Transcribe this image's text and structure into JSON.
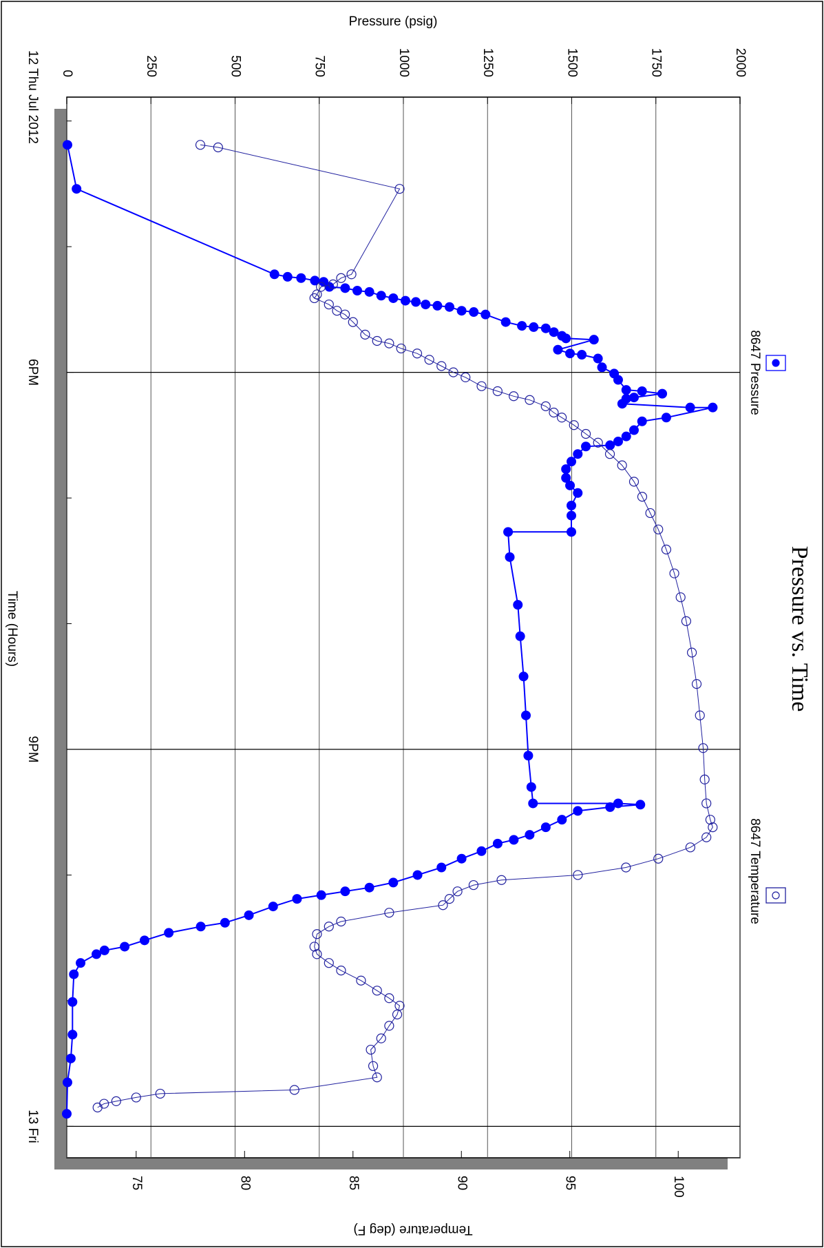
{
  "chart_data": {
    "type": "line",
    "title": "Pressure vs. Time",
    "x_label": "Time (Hours)",
    "y_label": "Pressure (psig)",
    "y2_label": "Temperature (deg F)",
    "xlim": [
      15.81,
      24.25
    ],
    "xticks": [
      {
        "value": 15.81,
        "label": "12 Thu Jul 2012"
      },
      {
        "value": 18,
        "label": "6PM"
      },
      {
        "value": 21,
        "label": "9PM"
      },
      {
        "value": 24,
        "label": "13 Fri"
      }
    ],
    "xminorticks": [
      16,
      17,
      19,
      20,
      22,
      23
    ],
    "ylim": [
      0,
      2000
    ],
    "yticks": [
      0,
      250,
      500,
      750,
      1000,
      1250,
      1500,
      1750,
      2000
    ],
    "y2lim": [
      71.8,
      102.85
    ],
    "y2ticks": [
      75,
      80,
      85,
      90,
      95,
      100
    ],
    "grid": true,
    "series": [
      {
        "name": "8647 Pressure",
        "color": "#0000ff",
        "marker_fill": true,
        "x": [
          16.19,
          16.54,
          17.22,
          17.24,
          17.25,
          17.27,
          17.28,
          17.32,
          17.33,
          17.35,
          17.36,
          17.39,
          17.41,
          17.43,
          17.44,
          17.46,
          17.47,
          17.48,
          17.51,
          17.52,
          17.54,
          17.6,
          17.63,
          17.64,
          17.65,
          17.68,
          17.71,
          17.73,
          17.74,
          17.82,
          17.85,
          17.86,
          17.89,
          17.96,
          18.01,
          18.06,
          18.14,
          18.15,
          18.17,
          18.2,
          18.21,
          18.25,
          18.28,
          18.28,
          18.36,
          18.39,
          18.46,
          18.51,
          18.55,
          18.58,
          18.59,
          18.65,
          18.71,
          18.77,
          18.84,
          18.9,
          18.96,
          19.06,
          19.14,
          19.27,
          19.27,
          19.47,
          19.85,
          20.1,
          20.42,
          20.73,
          21.05,
          21.3,
          21.43,
          21.43,
          21.44,
          21.46,
          21.49,
          21.56,
          21.62,
          21.68,
          21.72,
          21.75,
          21.81,
          21.87,
          21.94,
          22.0,
          22.06,
          22.1,
          22.13,
          22.16,
          22.19,
          22.25,
          22.32,
          22.38,
          22.41,
          22.46,
          22.52,
          22.57,
          22.6,
          22.63,
          22.7,
          22.79,
          23.01,
          23.27,
          23.46,
          23.65,
          23.9
        ],
        "values": [
          2,
          29,
          617,
          656,
          696,
          737,
          763,
          780,
          827,
          863,
          899,
          934,
          970,
          1006,
          1037,
          1066,
          1101,
          1137,
          1173,
          1209,
          1244,
          1304,
          1352,
          1387,
          1423,
          1447,
          1471,
          1483,
          1566,
          1459,
          1495,
          1530,
          1578,
          1590,
          1626,
          1638,
          1662,
          1709,
          1769,
          1685,
          1662,
          1650,
          1852,
          1919,
          1781,
          1709,
          1685,
          1662,
          1638,
          1614,
          1542,
          1518,
          1499,
          1483,
          1483,
          1495,
          1518,
          1499,
          1499,
          1499,
          1311,
          1316,
          1340,
          1347,
          1357,
          1364,
          1371,
          1380,
          1385,
          1638,
          1704,
          1614,
          1518,
          1471,
          1423,
          1375,
          1328,
          1280,
          1232,
          1173,
          1113,
          1042,
          970,
          899,
          827,
          756,
          684,
          613,
          541,
          470,
          398,
          303,
          231,
          172,
          112,
          88,
          41,
          21,
          17,
          17,
          12,
          2,
          0
        ]
      },
      {
        "name": "8647 Temperature",
        "color": "#1f1f9e",
        "marker_fill": false,
        "axis": "y2",
        "x": [
          16.19,
          16.21,
          16.54,
          17.22,
          17.25,
          17.3,
          17.32,
          17.38,
          17.41,
          17.46,
          17.51,
          17.54,
          17.6,
          17.7,
          17.75,
          17.77,
          17.81,
          17.85,
          17.9,
          17.95,
          18.0,
          18.04,
          18.11,
          18.15,
          18.19,
          18.22,
          18.27,
          18.32,
          18.36,
          18.42,
          18.49,
          18.56,
          18.65,
          18.74,
          18.87,
          18.99,
          19.12,
          19.25,
          19.41,
          19.6,
          19.79,
          19.98,
          20.23,
          20.48,
          20.73,
          20.99,
          21.24,
          21.43,
          21.56,
          21.62,
          21.7,
          21.78,
          21.87,
          21.94,
          22.0,
          22.04,
          22.08,
          22.13,
          22.19,
          22.24,
          22.3,
          22.37,
          22.41,
          22.47,
          22.57,
          22.63,
          22.7,
          22.76,
          22.84,
          22.92,
          22.98,
          23.04,
          23.11,
          23.2,
          23.3,
          23.39,
          23.52,
          23.61,
          23.71,
          23.74,
          23.77,
          23.8,
          23.82,
          23.85
        ],
        "values": [
          77.96,
          78.78,
          87.15,
          84.93,
          84.45,
          84.08,
          83.52,
          83.34,
          83.22,
          83.89,
          84.26,
          84.63,
          85.0,
          85.56,
          86.11,
          86.67,
          87.22,
          87.96,
          88.52,
          89.08,
          89.63,
          90.19,
          90.93,
          91.67,
          92.41,
          93.15,
          93.89,
          94.26,
          94.63,
          95.19,
          95.74,
          96.3,
          96.85,
          97.41,
          97.96,
          98.34,
          98.71,
          99.08,
          99.45,
          99.82,
          100.11,
          100.37,
          100.63,
          100.85,
          101.0,
          101.15,
          101.22,
          101.3,
          101.48,
          101.59,
          101.3,
          100.56,
          99.08,
          97.59,
          95.37,
          91.85,
          90.56,
          89.82,
          89.45,
          89.15,
          86.67,
          84.45,
          83.89,
          83.34,
          83.22,
          83.34,
          83.89,
          84.45,
          85.37,
          86.11,
          86.67,
          87.15,
          87.04,
          86.67,
          86.3,
          85.82,
          85.93,
          86.11,
          82.3,
          76.11,
          75.0,
          74.08,
          73.52,
          73.22
        ]
      }
    ]
  }
}
